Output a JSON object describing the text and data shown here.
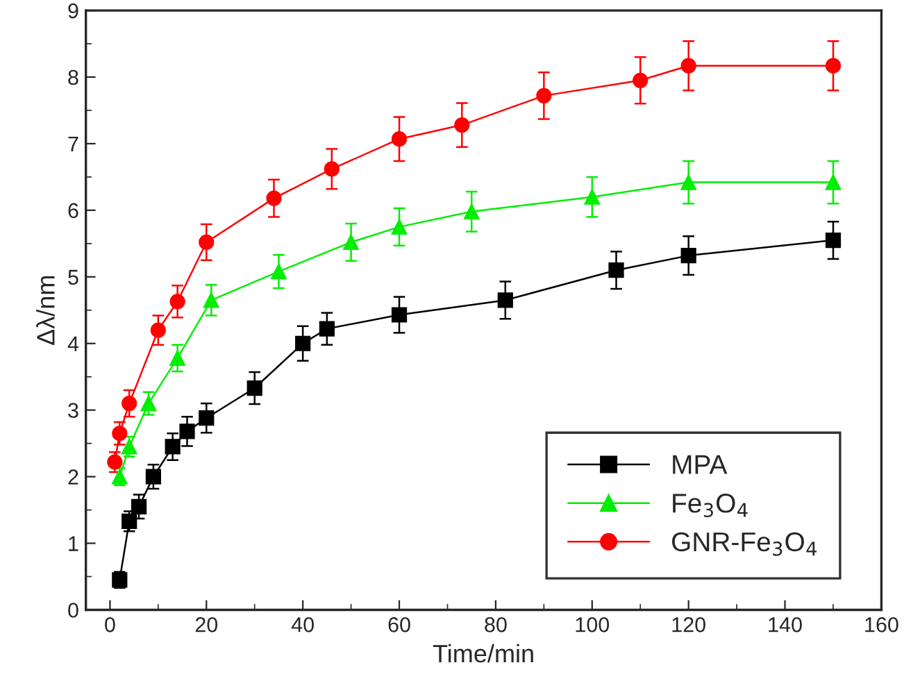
{
  "chart_data": {
    "type": "line",
    "xlabel": "Time/min",
    "ylabel": "Δλ/nm",
    "xlim": [
      -5,
      160
    ],
    "xticks": [
      0,
      20,
      40,
      60,
      80,
      100,
      120,
      140,
      160
    ],
    "ylim": [
      0,
      9
    ],
    "yticks": [
      0,
      1,
      2,
      3,
      4,
      5,
      6,
      7,
      8,
      9
    ],
    "grid": false,
    "legend": "bottom right",
    "line_style": "solid",
    "series": [
      {
        "name": "MPA",
        "color": "#000000",
        "marker": "square",
        "x": [
          2,
          4,
          6,
          9,
          13,
          16,
          20,
          30,
          40,
          45,
          60,
          82,
          105,
          120,
          150
        ],
        "values": [
          0.45,
          1.33,
          1.55,
          2.0,
          2.45,
          2.68,
          2.88,
          3.33,
          4.0,
          4.22,
          4.43,
          4.65,
          5.1,
          5.32,
          5.55
        ],
        "errors": [
          0.12,
          0.15,
          0.18,
          0.18,
          0.2,
          0.22,
          0.22,
          0.24,
          0.26,
          0.24,
          0.27,
          0.28,
          0.28,
          0.29,
          0.28
        ]
      },
      {
        "name": "Fe$_{3}$O$_{4}$",
        "color": "#00ee00",
        "marker": "triangle",
        "x": [
          2,
          4,
          8,
          14,
          21,
          35,
          50,
          60,
          75,
          100,
          120,
          150
        ],
        "values": [
          2.0,
          2.45,
          3.1,
          3.78,
          4.65,
          5.08,
          5.52,
          5.75,
          5.98,
          6.2,
          6.42,
          6.42
        ],
        "errors": [
          0.13,
          0.15,
          0.17,
          0.2,
          0.23,
          0.25,
          0.28,
          0.28,
          0.3,
          0.3,
          0.32,
          0.32
        ]
      },
      {
        "name": "GNR-Fe$_{3}$O$_{4}$",
        "color": "#ff0000",
        "marker": "circle",
        "x": [
          1,
          2,
          4,
          10,
          14,
          20,
          34,
          46,
          60,
          73,
          90,
          110,
          120,
          150
        ],
        "values": [
          2.22,
          2.65,
          3.1,
          4.2,
          4.63,
          5.52,
          6.18,
          6.62,
          7.07,
          7.28,
          7.72,
          7.95,
          8.17,
          8.17
        ],
        "errors": [
          0.15,
          0.17,
          0.2,
          0.22,
          0.24,
          0.27,
          0.28,
          0.3,
          0.33,
          0.33,
          0.35,
          0.35,
          0.37,
          0.37
        ]
      }
    ]
  }
}
